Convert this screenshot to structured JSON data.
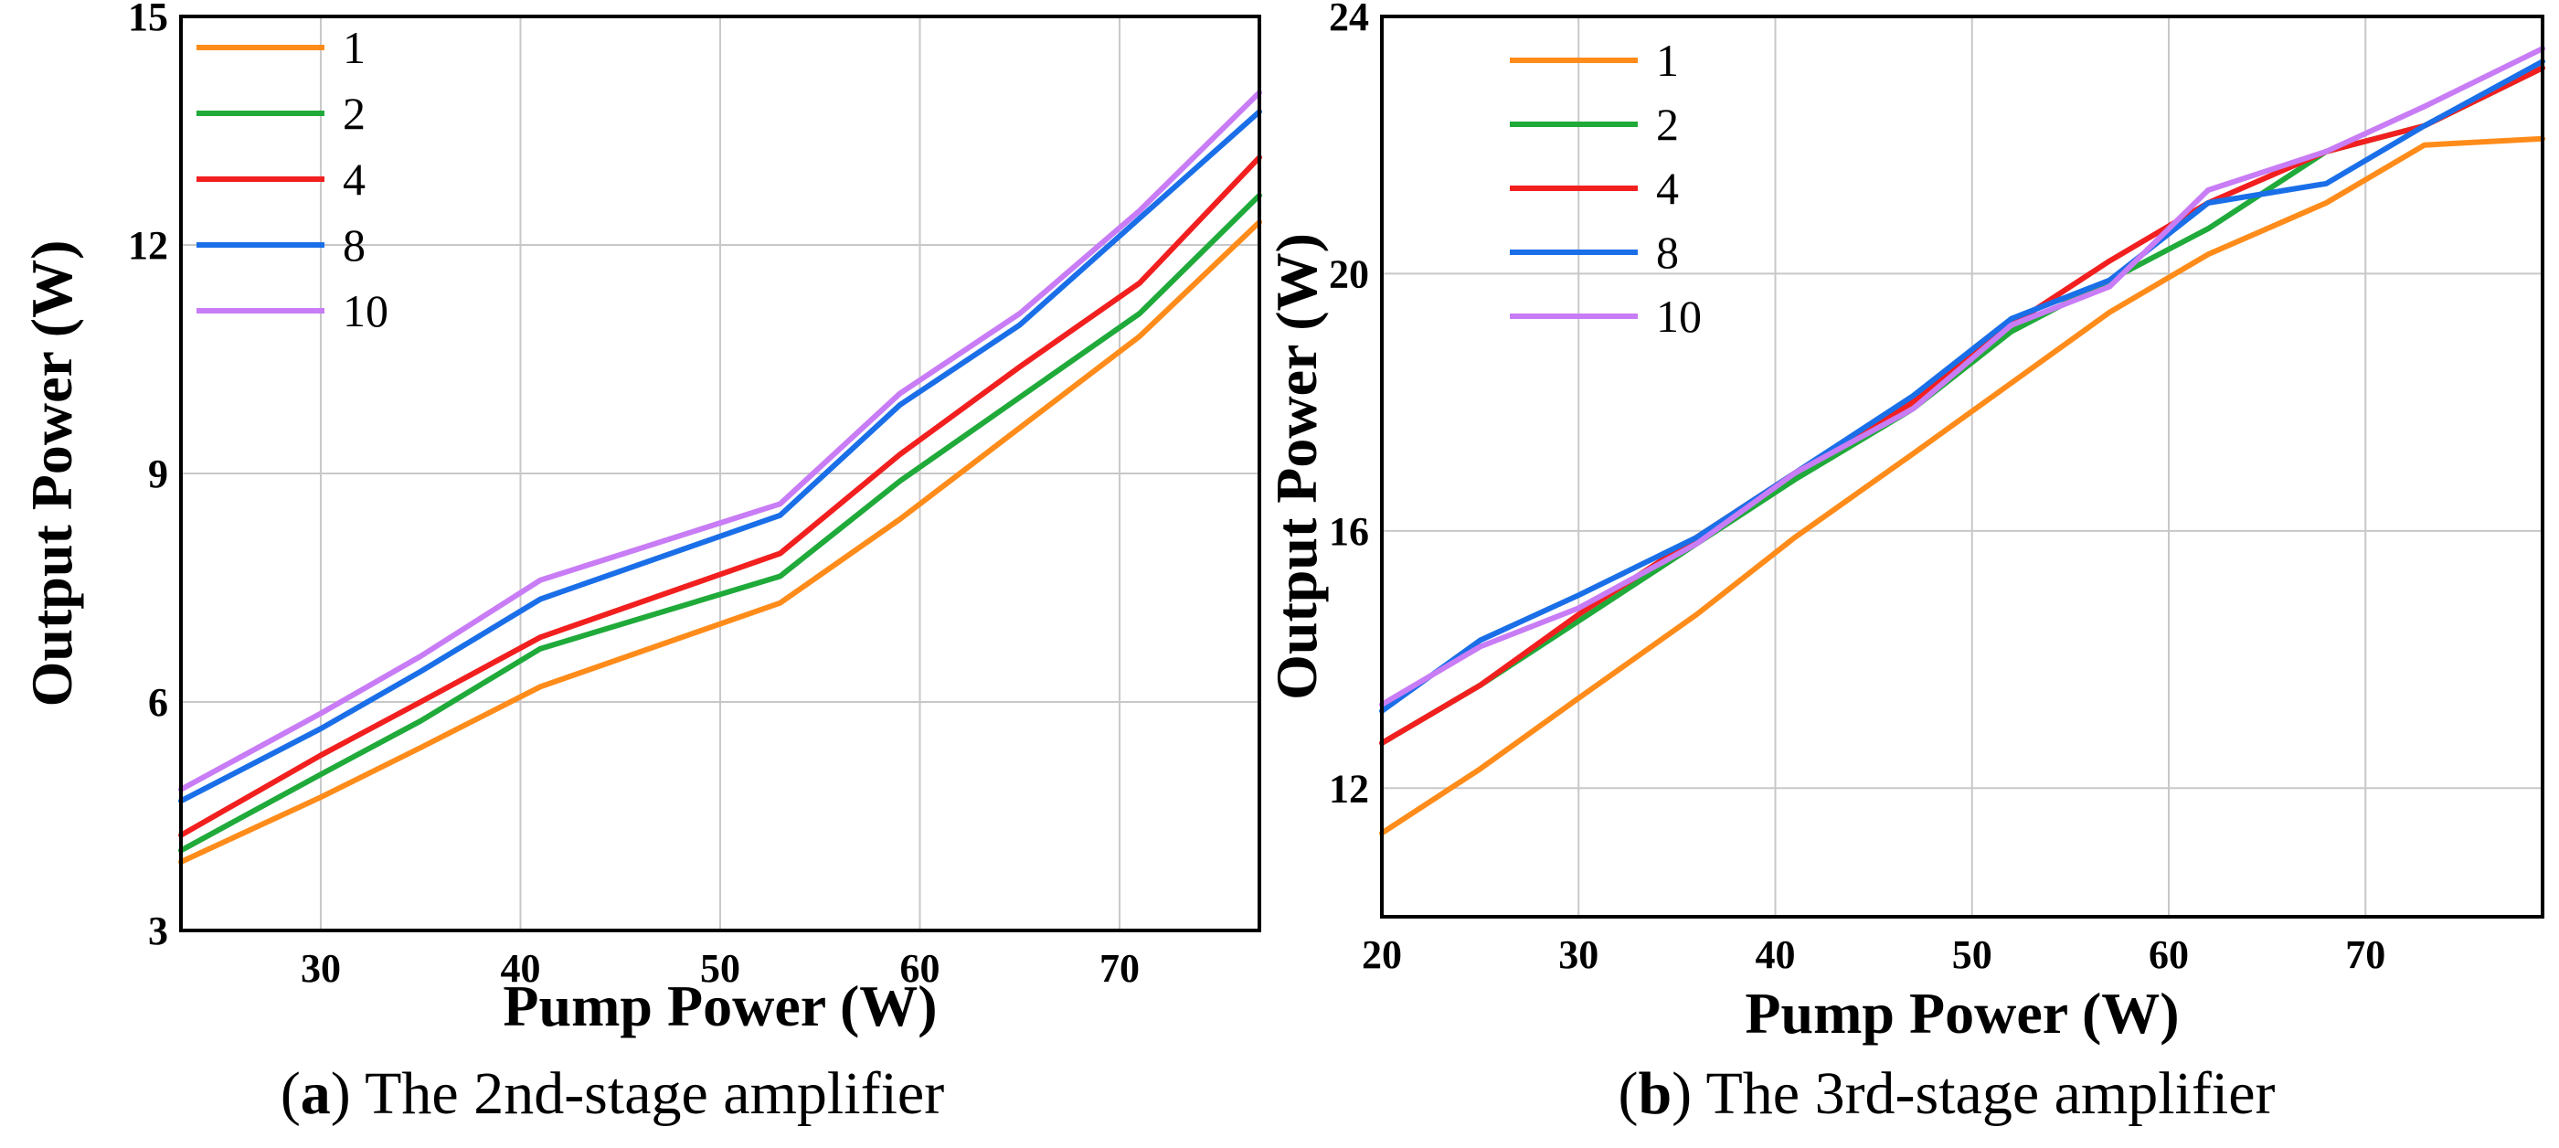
{
  "chart_data": [
    {
      "type": "line",
      "panel_letter": "a",
      "caption": "The 2nd-stage amplifier",
      "xlabel": "Pump Power (W)",
      "ylabel": "Output Power (W)",
      "xlim": [
        23,
        77
      ],
      "ylim": [
        3,
        15
      ],
      "xticks": [
        30,
        40,
        50,
        60,
        70
      ],
      "yticks": [
        3,
        6,
        9,
        12,
        15
      ],
      "grid": true,
      "legend_position": "top-left",
      "series": [
        {
          "name": "1",
          "color": "#FF8C1A",
          "x": [
            23,
            30,
            35,
            41,
            53,
            59,
            65,
            71,
            77
          ],
          "y": [
            3.9,
            4.75,
            5.4,
            6.2,
            7.3,
            8.4,
            9.6,
            10.8,
            12.3
          ]
        },
        {
          "name": "2",
          "color": "#1FAA3A",
          "x": [
            23,
            30,
            35,
            41,
            53,
            59,
            65,
            71,
            77
          ],
          "y": [
            4.05,
            5.05,
            5.75,
            6.7,
            7.65,
            8.9,
            10.0,
            11.1,
            12.65
          ]
        },
        {
          "name": "4",
          "color": "#F21F1F",
          "x": [
            23,
            30,
            35,
            41,
            53,
            59,
            65,
            71,
            77
          ],
          "y": [
            4.25,
            5.3,
            6.0,
            6.85,
            7.95,
            9.25,
            10.4,
            11.5,
            13.15
          ]
        },
        {
          "name": "8",
          "color": "#1A6FE8",
          "x": [
            23,
            30,
            35,
            41,
            53,
            59,
            65,
            71,
            77
          ],
          "y": [
            4.7,
            5.65,
            6.4,
            7.35,
            8.45,
            9.9,
            10.95,
            12.35,
            13.75
          ]
        },
        {
          "name": "10",
          "color": "#C87CF5",
          "x": [
            23,
            30,
            35,
            41,
            53,
            59,
            65,
            71,
            77
          ],
          "y": [
            4.85,
            5.85,
            6.6,
            7.6,
            8.6,
            10.05,
            11.1,
            12.45,
            14.0
          ]
        }
      ]
    },
    {
      "type": "line",
      "panel_letter": "b",
      "caption": "The 3rd-stage amplifier",
      "xlabel": "Pump Power (W)",
      "ylabel": "Output Power (W)",
      "xlim": [
        20,
        79
      ],
      "ylim": [
        10,
        24
      ],
      "xticks": [
        20,
        30,
        40,
        50,
        60,
        70
      ],
      "yticks": [
        12,
        16,
        20,
        24
      ],
      "grid": true,
      "legend_position": "top-left",
      "series": [
        {
          "name": "1",
          "color": "#FF8C1A",
          "x": [
            20,
            25,
            30,
            36,
            41,
            47,
            52,
            57,
            62,
            68,
            73,
            79
          ],
          "y": [
            11.3,
            12.3,
            13.4,
            14.7,
            15.9,
            17.2,
            18.3,
            19.4,
            20.3,
            21.1,
            22.0,
            22.1
          ]
        },
        {
          "name": "2",
          "color": "#1FAA3A",
          "x": [
            20,
            25,
            30,
            36,
            41,
            47,
            52,
            57,
            62,
            68,
            73,
            79
          ],
          "y": [
            12.7,
            13.6,
            14.6,
            15.8,
            16.8,
            17.9,
            19.1,
            19.9,
            20.7,
            21.9,
            22.3,
            23.2
          ]
        },
        {
          "name": "4",
          "color": "#F21F1F",
          "x": [
            20,
            25,
            30,
            36,
            41,
            47,
            52,
            57,
            62,
            68,
            73,
            79
          ],
          "y": [
            12.7,
            13.6,
            14.7,
            15.9,
            16.9,
            18.0,
            19.2,
            20.2,
            21.1,
            21.9,
            22.3,
            23.2
          ]
        },
        {
          "name": "8",
          "color": "#1A6FE8",
          "x": [
            20,
            25,
            30,
            36,
            41,
            47,
            52,
            57,
            62,
            68,
            73,
            79
          ],
          "y": [
            13.2,
            14.3,
            15.0,
            15.9,
            16.9,
            18.1,
            19.3,
            19.9,
            21.1,
            21.4,
            22.3,
            23.3
          ]
        },
        {
          "name": "10",
          "color": "#C87CF5",
          "x": [
            20,
            25,
            30,
            36,
            41,
            47,
            52,
            57,
            62,
            68,
            73,
            79
          ],
          "y": [
            13.3,
            14.2,
            14.8,
            15.8,
            16.9,
            17.9,
            19.2,
            19.8,
            21.3,
            21.9,
            22.6,
            23.5
          ]
        }
      ]
    }
  ]
}
